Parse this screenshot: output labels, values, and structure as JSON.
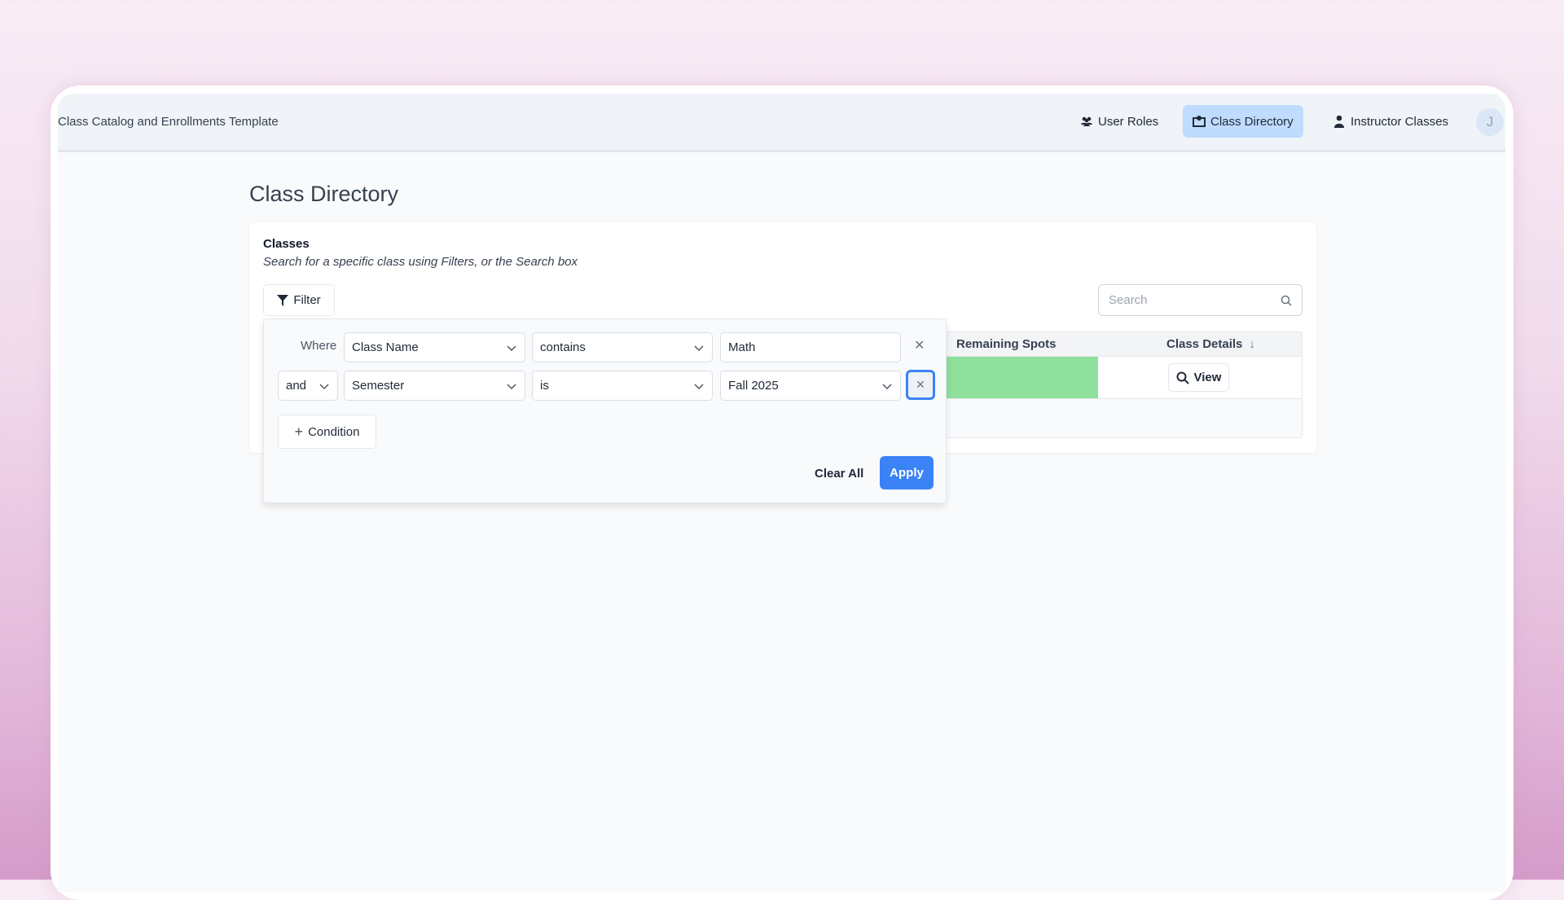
{
  "header": {
    "app_title": "Class Catalog and Enrollments Template",
    "nav": [
      {
        "label": "User Roles",
        "icon": "users-icon"
      },
      {
        "label": "Class Directory",
        "icon": "map-icon",
        "active": true
      },
      {
        "label": "Instructor Classes",
        "icon": "user-icon"
      }
    ],
    "avatar": "J"
  },
  "page": {
    "title": "Class Directory"
  },
  "card": {
    "title": "Classes",
    "subtitle": "Search for a specific class using Filters, or the Search box",
    "filter_label": "Filter",
    "search_placeholder": "Search",
    "table": {
      "headers": [
        "Remaining Spots",
        "Class Details"
      ],
      "view_label": "View",
      "spots_color": "#8ee09c"
    }
  },
  "filter": {
    "where_label": "Where",
    "conditions": [
      {
        "field": "Class Name",
        "operator": "contains",
        "value": "Math"
      },
      {
        "conjunction": "and",
        "field": "Semester",
        "operator": "is",
        "value": "Fall 2025"
      }
    ],
    "add_condition": "Condition",
    "clear_all": "Clear All",
    "apply": "Apply",
    "accent": "#3b82f6"
  }
}
